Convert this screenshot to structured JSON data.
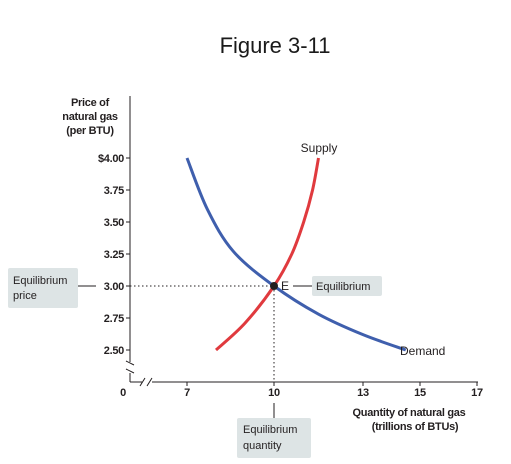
{
  "figure_title": "Figure 3-11",
  "chart_data": {
    "type": "line",
    "ylabel": [
      "Price of",
      "natural gas",
      "(per BTU)"
    ],
    "xlabel": [
      "Quantity of natural gas",
      "(trillions of BTUs)"
    ],
    "y_ticks": [
      "$4.00",
      "3.75",
      "3.50",
      "3.25",
      "3.00",
      "2.75",
      "2.50"
    ],
    "y_tick_values": [
      4.0,
      3.75,
      3.5,
      3.25,
      3.0,
      2.75,
      2.5
    ],
    "x_ticks": [
      "7",
      "10",
      "13",
      "15",
      "17"
    ],
    "x_tick_values": [
      7,
      10,
      13,
      15,
      17
    ],
    "origin_label": "0",
    "axis_breaks": true,
    "xlim": [
      7,
      17
    ],
    "ylim": [
      2.5,
      4.0
    ],
    "series": [
      {
        "name": "Supply",
        "color": "#e03a3e",
        "points": [
          [
            8,
            2.5
          ],
          [
            9,
            2.71
          ],
          [
            10,
            3.0
          ],
          [
            10.6,
            3.25
          ],
          [
            11,
            3.5
          ],
          [
            11.3,
            3.75
          ],
          [
            11.5,
            4.0
          ]
        ]
      },
      {
        "name": "Demand",
        "color": "#3f5fad",
        "points": [
          [
            7,
            4.0
          ],
          [
            7.7,
            3.6
          ],
          [
            8.6,
            3.27
          ],
          [
            10,
            3.0
          ],
          [
            11.5,
            2.78
          ],
          [
            13,
            2.62
          ],
          [
            14.5,
            2.5
          ]
        ]
      }
    ],
    "equilibrium": {
      "x": 10,
      "y": 3.0,
      "label": "E"
    },
    "callouts": {
      "equilibrium": [
        "Equilibrium"
      ],
      "equilibrium_price": [
        "Equilibrium",
        "price"
      ],
      "equilibrium_quantity": [
        "Equilibrium",
        "quantity"
      ]
    },
    "grid": false,
    "legend": "none"
  }
}
